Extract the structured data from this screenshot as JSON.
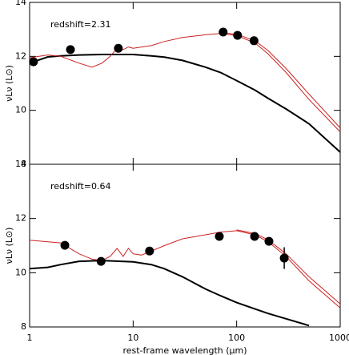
{
  "chart_data": [
    {
      "type": "line",
      "annotation": "redshift=2.31",
      "ylabel": "νLν (L⊙)",
      "xscale": "log",
      "xlim": [
        1,
        1000
      ],
      "xticks": [
        1,
        10,
        100,
        1000
      ],
      "show_xtick_labels": false,
      "ylim": [
        8,
        14
      ],
      "yticks": [
        8,
        10,
        12,
        14
      ],
      "series": [
        {
          "style": "line",
          "color": "#000000",
          "x": [
            1,
            1.5,
            2,
            3,
            5,
            10,
            15,
            20,
            30,
            50,
            70,
            100,
            150,
            200,
            300,
            500,
            1000
          ],
          "values": [
            11.75,
            11.98,
            12.02,
            12.05,
            12.07,
            12.07,
            12.02,
            11.97,
            11.85,
            11.6,
            11.4,
            11.1,
            10.75,
            10.45,
            10.05,
            9.5,
            8.45
          ]
        },
        {
          "style": "line",
          "color": "#cc2222",
          "x": [
            1,
            1.5,
            2,
            3,
            4,
            5,
            6,
            7,
            8,
            9,
            10,
            15,
            20,
            30,
            50,
            70,
            100,
            150,
            200,
            300,
            500,
            1000
          ],
          "values": [
            11.95,
            12.05,
            12.0,
            11.75,
            11.6,
            11.75,
            12.0,
            12.3,
            12.25,
            12.35,
            12.3,
            12.4,
            12.55,
            12.7,
            12.8,
            12.85,
            12.77,
            12.5,
            12.1,
            11.4,
            10.4,
            9.2
          ]
        },
        {
          "style": "line",
          "color": "#cc2222",
          "x": [
            70,
            100,
            150,
            200,
            300,
            500,
            1000
          ],
          "values": [
            12.88,
            12.82,
            12.58,
            12.22,
            11.55,
            10.6,
            9.35
          ]
        },
        {
          "style": "points",
          "color": "#000000",
          "x": [
            1.09,
            2.48,
            7.2,
            74,
            102,
            147
          ],
          "values": [
            11.8,
            12.25,
            12.3,
            12.9,
            12.78,
            12.58
          ]
        }
      ]
    },
    {
      "type": "line",
      "annotation": "redshift=0.64",
      "ylabel": "νLν (L⊙)",
      "xlabel": "rest-frame wavelength (μm)",
      "xscale": "log",
      "xlim": [
        1,
        1000
      ],
      "xticks": [
        1,
        10,
        100,
        1000
      ],
      "show_xtick_labels": true,
      "ylim": [
        8,
        14
      ],
      "yticks": [
        8,
        10,
        12,
        14
      ],
      "series": [
        {
          "style": "line",
          "color": "#000000",
          "x": [
            1,
            1.5,
            2,
            3,
            5,
            10,
            15,
            20,
            30,
            50,
            70,
            100,
            200,
            300,
            500
          ],
          "values": [
            10.15,
            10.2,
            10.3,
            10.42,
            10.45,
            10.4,
            10.3,
            10.15,
            9.85,
            9.4,
            9.15,
            8.9,
            8.5,
            8.3,
            8.05
          ]
        },
        {
          "style": "line",
          "color": "#cc2222",
          "x": [
            1,
            2,
            3,
            4,
            5,
            6,
            7,
            8,
            9,
            10,
            12,
            15,
            20,
            30,
            50,
            70,
            100,
            150,
            200,
            300,
            500,
            1000
          ],
          "values": [
            11.2,
            11.1,
            10.7,
            10.5,
            10.45,
            10.6,
            10.9,
            10.6,
            10.9,
            10.7,
            10.65,
            10.8,
            11.0,
            11.25,
            11.4,
            11.5,
            11.55,
            11.4,
            11.15,
            10.6,
            9.7,
            8.7
          ]
        },
        {
          "style": "line",
          "color": "#cc2222",
          "x": [
            100,
            150,
            200,
            300,
            500,
            1000
          ],
          "values": [
            11.58,
            11.45,
            11.22,
            10.7,
            9.85,
            8.85
          ]
        },
        {
          "style": "points",
          "color": "#000000",
          "x": [
            2.19,
            4.9,
            14.4,
            68,
            149,
            205,
            288
          ],
          "values": [
            11.01,
            10.42,
            10.8,
            11.34,
            11.34,
            11.16,
            10.54
          ],
          "errors": [
            null,
            null,
            null,
            null,
            null,
            null,
            0.4
          ]
        }
      ]
    }
  ]
}
